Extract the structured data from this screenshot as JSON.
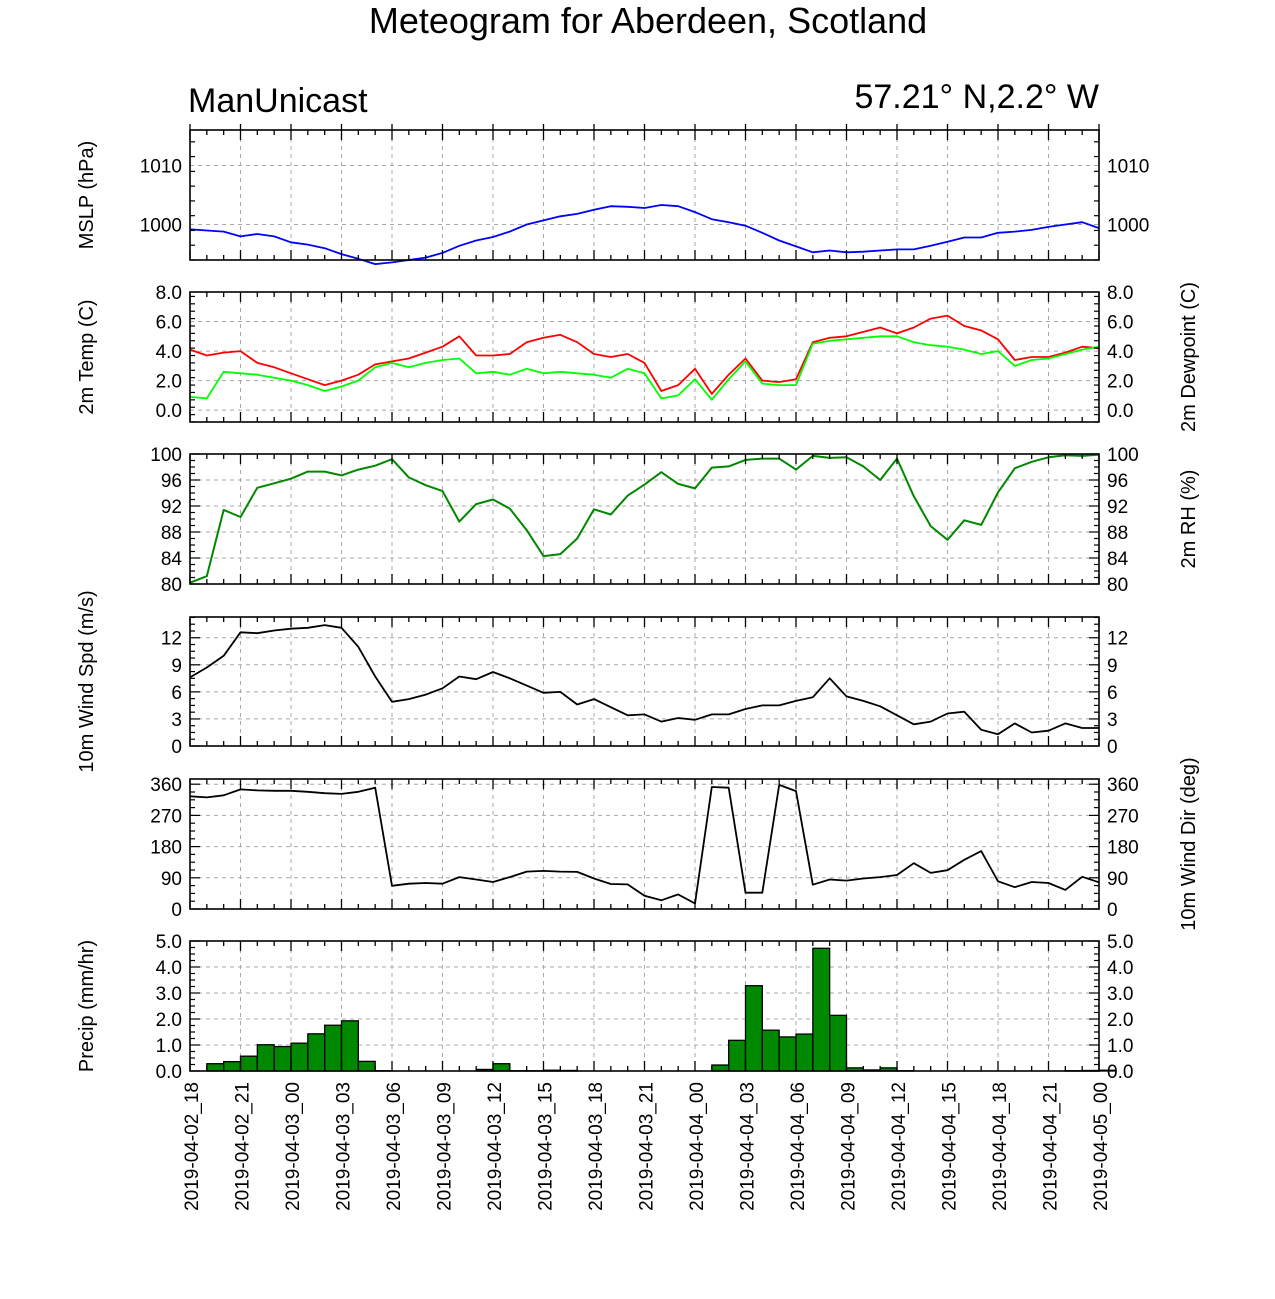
{
  "title": "Meteogram for Aberdeen, Scotland",
  "model_label": "ManUnicast",
  "location_label": "57.21° N,2.2° W",
  "x_tick_labels": [
    "2019-04-02_18",
    "2019-04-02_21",
    "2019-04-03_00",
    "2019-04-03_03",
    "2019-04-03_06",
    "2019-04-03_09",
    "2019-04-03_12",
    "2019-04-03_15",
    "2019-04-03_18",
    "2019-04-03_21",
    "2019-04-04_00",
    "2019-04-04_03",
    "2019-04-04_06",
    "2019-04-04_09",
    "2019-04-04_12",
    "2019-04-04_15",
    "2019-04-04_18",
    "2019-04-04_21",
    "2019-04-05_00"
  ],
  "colors": {
    "mslp": "#0000ff",
    "temp": "#ff0000",
    "dewpoint": "#00ff00",
    "rh": "#008800",
    "wind": "#000000",
    "precip_fill": "#008800"
  },
  "chart_data": [
    {
      "type": "line",
      "panel": "mslp",
      "left_label": "MSLP (hPa)",
      "right_label": "",
      "ylim": [
        994,
        1016
      ],
      "left_ticks": [
        "1010",
        "1000"
      ],
      "right_ticks": [
        "1010",
        "1000"
      ],
      "tick_values": [
        1010,
        1000
      ],
      "grid": true,
      "x_hours": [
        0,
        1,
        2,
        3,
        4,
        5,
        6,
        7,
        8,
        9,
        10,
        11,
        12,
        13,
        14,
        15,
        16,
        17,
        18,
        19,
        20,
        21,
        22,
        23,
        24,
        25,
        26,
        27,
        28,
        29,
        30,
        31,
        32,
        33,
        34,
        35,
        36,
        37,
        38,
        39,
        40,
        41,
        42,
        43,
        44,
        45,
        46,
        47,
        48,
        49,
        50,
        51,
        52,
        53,
        54
      ],
      "series": [
        {
          "color_key": "mslp",
          "values": [
            999.2,
            999.0,
            998.8,
            998.0,
            998.4,
            998.0,
            997.0,
            996.6,
            996.0,
            995.0,
            994.2,
            993.3,
            993.6,
            994.0,
            994.4,
            995.2,
            996.4,
            997.3,
            997.9,
            998.8,
            1000.0,
            1000.7,
            1001.4,
            1001.8,
            1002.5,
            1003.1,
            1003.0,
            1002.8,
            1003.3,
            1003.1,
            1002.1,
            1000.9,
            1000.4,
            999.8,
            998.6,
            997.3,
            996.3,
            995.3,
            995.6,
            995.3,
            995.4,
            995.6,
            995.8,
            995.8,
            996.4,
            997.1,
            997.8,
            997.8,
            998.6,
            998.8,
            999.1,
            999.6,
            1000.0,
            1000.4,
            999.4
          ]
        }
      ]
    },
    {
      "type": "line",
      "panel": "temp",
      "left_label": "2m Temp (C)",
      "right_label": "2m Dewpoint (C)",
      "ylim": [
        -0.8,
        8.0
      ],
      "left_ticks": [
        "8.0",
        "6.0",
        "4.0",
        "2.0",
        "0.0"
      ],
      "right_ticks": [
        "8.0",
        "6.0",
        "4.0",
        "2.0",
        "0.0"
      ],
      "tick_values": [
        8,
        6,
        4,
        2,
        0
      ],
      "grid": true,
      "x_hours": [
        0,
        1,
        2,
        3,
        4,
        5,
        6,
        7,
        8,
        9,
        10,
        11,
        12,
        13,
        14,
        15,
        16,
        17,
        18,
        19,
        20,
        21,
        22,
        23,
        24,
        25,
        26,
        27,
        28,
        29,
        30,
        31,
        32,
        33,
        34,
        35,
        36,
        37,
        38,
        39,
        40,
        41,
        42,
        43,
        44,
        45,
        46,
        47,
        48,
        49,
        50,
        51,
        52,
        53,
        54
      ],
      "series": [
        {
          "color_key": "temp",
          "values": [
            4.1,
            3.7,
            3.9,
            4.0,
            3.2,
            2.9,
            2.5,
            2.1,
            1.7,
            2.0,
            2.4,
            3.1,
            3.3,
            3.5,
            3.9,
            4.3,
            5.0,
            3.7,
            3.7,
            3.8,
            4.6,
            4.9,
            5.1,
            4.6,
            3.8,
            3.6,
            3.8,
            3.2,
            1.3,
            1.7,
            2.8,
            1.1,
            2.4,
            3.5,
            2.0,
            1.9,
            2.1,
            4.6,
            4.9,
            5.0,
            5.3,
            5.6,
            5.2,
            5.6,
            6.2,
            6.4,
            5.7,
            5.4,
            4.8,
            3.4,
            3.6,
            3.6,
            3.9,
            4.3,
            4.2
          ]
        },
        {
          "color_key": "dewpoint",
          "values": [
            0.9,
            0.8,
            2.6,
            2.5,
            2.4,
            2.2,
            2.0,
            1.7,
            1.3,
            1.6,
            2.0,
            2.9,
            3.2,
            2.9,
            3.2,
            3.4,
            3.5,
            2.5,
            2.6,
            2.4,
            2.8,
            2.5,
            2.6,
            2.5,
            2.4,
            2.2,
            2.8,
            2.5,
            0.8,
            1.0,
            2.1,
            0.7,
            2.1,
            3.3,
            1.8,
            1.7,
            1.7,
            4.5,
            4.7,
            4.8,
            4.9,
            5.0,
            5.0,
            4.6,
            4.4,
            4.3,
            4.1,
            3.8,
            4.0,
            3.0,
            3.4,
            3.5,
            3.8,
            4.1,
            4.3
          ]
        }
      ]
    },
    {
      "type": "line",
      "panel": "rh",
      "left_label": "",
      "right_label": "2m RH (%)",
      "ylim": [
        80,
        100
      ],
      "left_ticks": [
        "100",
        "96",
        "92",
        "88",
        "84",
        "80"
      ],
      "right_ticks": [
        "100",
        "96",
        "92",
        "88",
        "84",
        "80"
      ],
      "tick_values": [
        100,
        96,
        92,
        88,
        84,
        80
      ],
      "grid": true,
      "x_hours": [
        0,
        1,
        2,
        3,
        4,
        5,
        6,
        7,
        8,
        9,
        10,
        11,
        12,
        13,
        14,
        15,
        16,
        17,
        18,
        19,
        20,
        21,
        22,
        23,
        24,
        25,
        26,
        27,
        28,
        29,
        30,
        31,
        32,
        33,
        34,
        35,
        36,
        37,
        38,
        39,
        40,
        41,
        42,
        43,
        44,
        45,
        46,
        47,
        48,
        49,
        50,
        51,
        52,
        53,
        54
      ],
      "series": [
        {
          "color_key": "rh",
          "values": [
            80.2,
            81.2,
            91.4,
            90.3,
            94.8,
            95.5,
            96.2,
            97.3,
            97.3,
            96.7,
            97.6,
            98.2,
            99.2,
            96.4,
            95.2,
            94.3,
            89.6,
            92.3,
            93.0,
            91.6,
            88.3,
            84.3,
            84.6,
            87.0,
            91.5,
            90.7,
            93.6,
            95.3,
            97.2,
            95.4,
            94.7,
            97.9,
            98.1,
            99.1,
            99.3,
            99.3,
            97.6,
            99.7,
            99.4,
            99.5,
            98.1,
            96.0,
            99.3,
            93.5,
            88.9,
            86.8,
            89.8,
            89.1,
            94.1,
            97.8,
            98.8,
            99.5,
            99.8,
            99.7,
            99.9
          ]
        }
      ]
    },
    {
      "type": "line",
      "panel": "wind_speed",
      "left_label": "10m Wind Spd (m/s)",
      "right_label": "",
      "ylim": [
        0,
        14.3
      ],
      "left_ticks": [
        "12",
        "9",
        "6",
        "3",
        "0"
      ],
      "right_ticks": [
        "12",
        "9",
        "6",
        "3",
        "0"
      ],
      "tick_values": [
        12,
        9,
        6,
        3,
        0
      ],
      "grid": true,
      "x_hours": [
        0,
        1,
        2,
        3,
        4,
        5,
        6,
        7,
        8,
        9,
        10,
        11,
        12,
        13,
        14,
        15,
        16,
        17,
        18,
        19,
        20,
        21,
        22,
        23,
        24,
        25,
        26,
        27,
        28,
        29,
        30,
        31,
        32,
        33,
        34,
        35,
        36,
        37,
        38,
        39,
        40,
        41,
        42,
        43,
        44,
        45,
        46,
        47,
        48,
        49,
        50,
        51,
        52,
        53,
        54
      ],
      "series": [
        {
          "color_key": "wind",
          "values": [
            7.6,
            8.7,
            10.0,
            12.6,
            12.5,
            12.8,
            13.0,
            13.1,
            13.4,
            13.1,
            11.0,
            7.7,
            4.9,
            5.2,
            5.7,
            6.4,
            7.7,
            7.4,
            8.2,
            7.5,
            6.7,
            5.9,
            6.0,
            4.6,
            5.2,
            4.3,
            3.4,
            3.5,
            2.7,
            3.1,
            2.9,
            3.5,
            3.5,
            4.1,
            4.5,
            4.5,
            5.0,
            5.4,
            7.5,
            5.5,
            5.0,
            4.4,
            3.4,
            2.4,
            2.7,
            3.6,
            3.8,
            1.8,
            1.3,
            2.5,
            1.5,
            1.7,
            2.5,
            2.0,
            2.0
          ]
        }
      ]
    },
    {
      "type": "line",
      "panel": "wind_direction",
      "left_label": "",
      "right_label": "10m Wind Dir (deg)",
      "ylim": [
        0,
        375
      ],
      "left_ticks": [
        "360",
        "270",
        "180",
        "90",
        "0"
      ],
      "right_ticks": [
        "360",
        "270",
        "180",
        "90",
        "0"
      ],
      "tick_values": [
        360,
        270,
        180,
        90,
        0
      ],
      "grid": true,
      "x_hours": [
        0,
        1,
        2,
        3,
        4,
        5,
        6,
        7,
        8,
        9,
        10,
        11,
        12,
        13,
        14,
        15,
        16,
        17,
        18,
        19,
        20,
        21,
        22,
        23,
        24,
        25,
        26,
        27,
        28,
        29,
        30,
        31,
        32,
        33,
        34,
        35,
        36,
        37,
        38,
        39,
        40,
        41,
        42,
        43,
        44,
        45,
        46,
        47,
        48,
        49,
        50,
        51,
        52,
        53,
        54
      ],
      "series": [
        {
          "color_key": "wind",
          "values": [
            325,
            322,
            328,
            345,
            342,
            341,
            341,
            338,
            334,
            332,
            338,
            350,
            67,
            73,
            75,
            73,
            92,
            85,
            78,
            92,
            108,
            110,
            108,
            107,
            88,
            72,
            71,
            38,
            25,
            42,
            16,
            352,
            350,
            47,
            47,
            358,
            340,
            70,
            85,
            82,
            88,
            92,
            98,
            132,
            104,
            112,
            142,
            167,
            80,
            63,
            78,
            75,
            55,
            93,
            77
          ]
        }
      ]
    },
    {
      "type": "bar",
      "panel": "precip",
      "left_label": "Precip (mm/hr)",
      "right_label": "",
      "ylim": [
        0,
        5.0
      ],
      "left_ticks": [
        "5.0",
        "4.0",
        "3.0",
        "2.0",
        "1.0",
        "0.0"
      ],
      "right_ticks": [
        "5.0",
        "4.0",
        "3.0",
        "2.0",
        "1.0",
        "0.0"
      ],
      "tick_values": [
        5,
        4,
        3,
        2,
        1,
        0
      ],
      "grid": true,
      "x_hours": [
        0,
        1,
        2,
        3,
        4,
        5,
        6,
        7,
        8,
        9,
        10,
        11,
        12,
        13,
        14,
        15,
        16,
        17,
        18,
        19,
        20,
        21,
        22,
        23,
        24,
        25,
        26,
        27,
        28,
        29,
        30,
        31,
        32,
        33,
        34,
        35,
        36,
        37,
        38,
        39,
        40,
        41,
        42,
        43,
        44,
        45,
        46,
        47,
        48,
        49,
        50,
        51,
        52,
        53,
        54
      ],
      "series": [
        {
          "color_key": "precip_fill",
          "values": [
            0,
            0.28,
            0.36,
            0.57,
            1.01,
            0.94,
            1.07,
            1.43,
            1.76,
            1.93,
            0.37,
            0.01,
            0,
            0,
            0,
            0,
            0,
            0.06,
            0.28,
            0.01,
            0.01,
            0.03,
            0.02,
            0,
            0,
            0,
            0,
            0,
            0,
            0,
            0,
            0.23,
            1.18,
            3.28,
            1.57,
            1.31,
            1.42,
            4.72,
            2.14,
            0.12,
            0.04,
            0.12,
            0.01,
            0,
            0,
            0,
            0,
            0,
            0,
            0,
            0,
            0,
            0.01,
            0.02,
            0.03
          ]
        }
      ]
    }
  ]
}
